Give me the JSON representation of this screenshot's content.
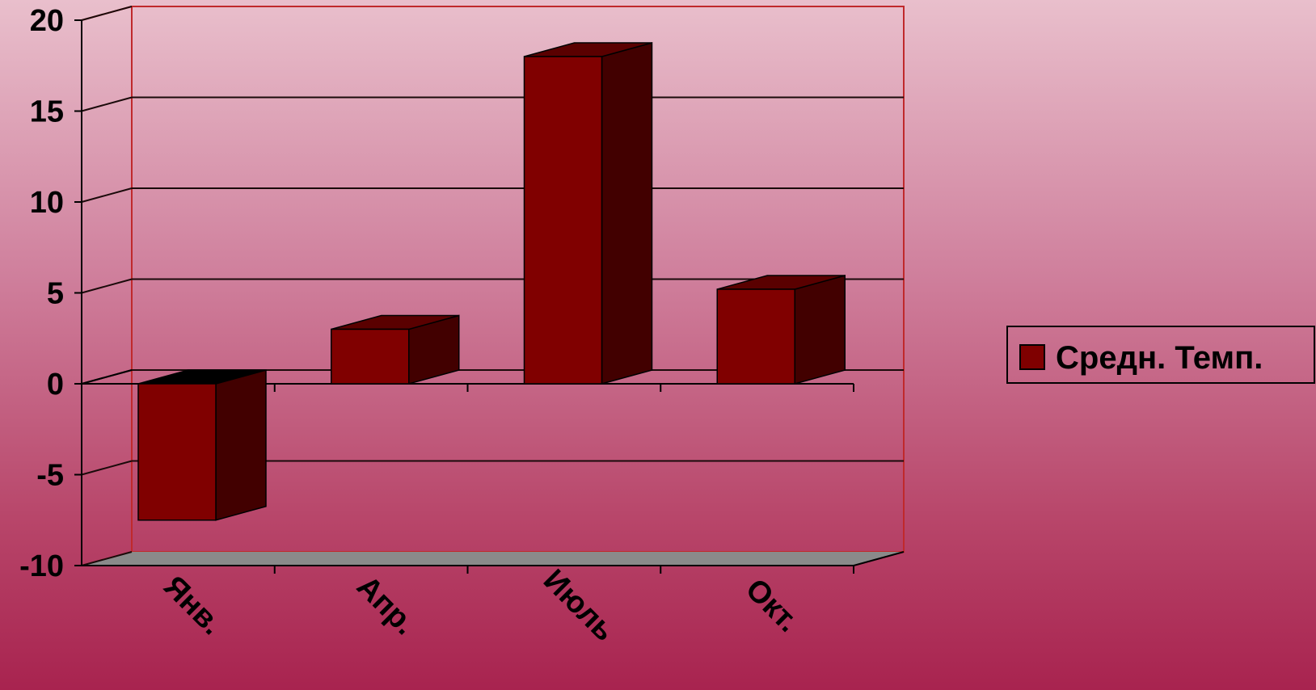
{
  "chart_data": {
    "type": "bar",
    "style": "3d-column",
    "categories": [
      "Янв.",
      "Апр.",
      "Июль",
      "Окт."
    ],
    "series": [
      {
        "name": "Средн. Темп.",
        "values": [
          -7.5,
          3.0,
          18.0,
          5.2
        ],
        "color": "#7f0000"
      }
    ],
    "yticks": [
      -10,
      -5,
      0,
      5,
      10,
      15,
      20
    ],
    "ylim": [
      -10,
      20
    ],
    "grid": true,
    "legend": {
      "position": "right",
      "label": "Средн. Темп."
    },
    "title": "",
    "xlabel": "",
    "ylabel": ""
  },
  "colors": {
    "bar_front": "#800000",
    "bar_side": "#420000",
    "bar_top": "#5a0000",
    "floor": "#8a8a8a",
    "plot_frame": "#c0292c",
    "gridline": "#1a0a0a"
  }
}
